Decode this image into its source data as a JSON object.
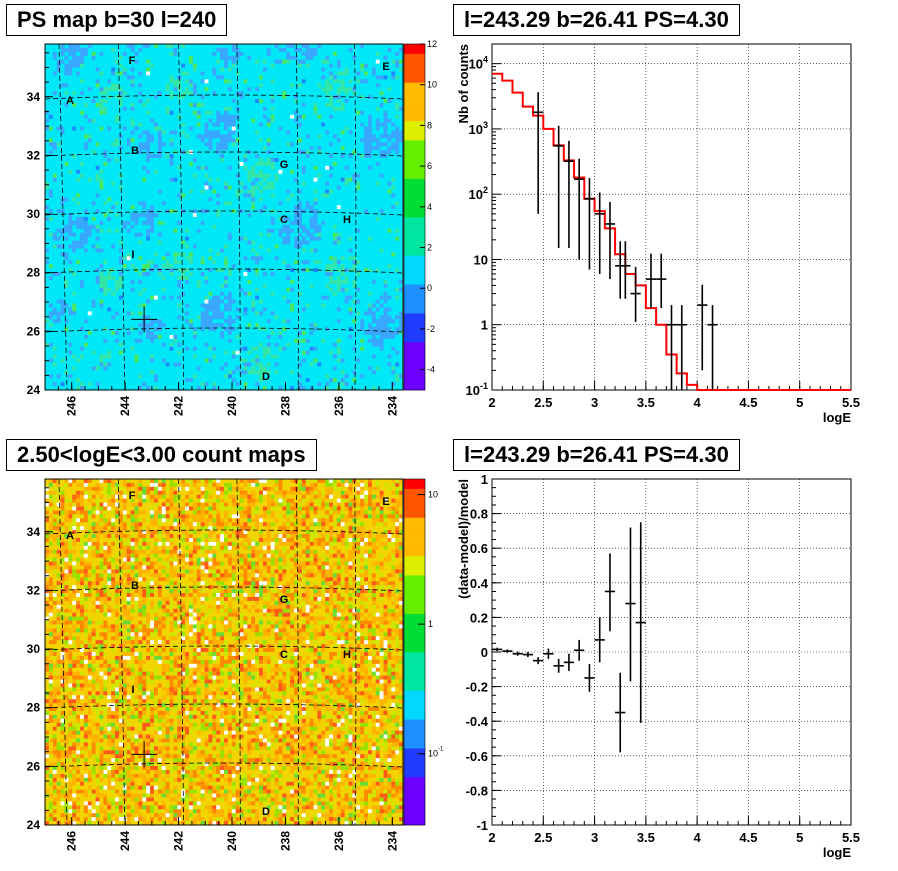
{
  "panels": {
    "ps_map": {
      "title": "PS map b=30 l=240"
    },
    "spectrum": {
      "title": "l=243.29 b=26.41 PS=4.30"
    },
    "count_map": {
      "title": "2.50<logE<3.00 count maps"
    },
    "residual": {
      "title": "l=243.29 b=26.41 PS=4.30"
    }
  },
  "colors": {
    "data": "#000000",
    "model": "#ff0000",
    "map_bg_top": "#00eaff",
    "map_bg_bottom": "#f5d000"
  },
  "chart_data": [
    {
      "type": "heatmap",
      "title": "PS map b=30 l=240",
      "x_tick_labels": [
        "246",
        "244",
        "242",
        "240",
        "238",
        "236",
        "234"
      ],
      "y_tick_labels": [
        "24",
        "26",
        "28",
        "30",
        "32",
        "34"
      ],
      "colorbar_labels": [
        "12",
        "10",
        "8",
        "6",
        "4",
        "2",
        "0",
        "-2",
        "-4"
      ],
      "zlim": [
        -5,
        12
      ],
      "source_labels": [
        "A",
        "B",
        "C",
        "D",
        "E",
        "F",
        "G",
        "H",
        "I"
      ],
      "marker": {
        "l": 243.29,
        "b": 26.41
      }
    },
    {
      "type": "line",
      "title": "l=243.29 b=26.41 PS=4.30",
      "xlabel": "logE",
      "ylabel": "Nb of counts",
      "xlim": [
        2,
        5.5
      ],
      "ylim": [
        0.1,
        20000
      ],
      "y_scale": "log",
      "x_tick_labels": [
        "2",
        "2.5",
        "3",
        "3.5",
        "4",
        "4.5",
        "5",
        "5.5"
      ],
      "y_tick_labels": [
        "10^{-1}",
        "1",
        "10",
        "10^{2}",
        "10^{3}",
        "10^{4}"
      ],
      "grid": true,
      "series": [
        {
          "kind": "step",
          "x_edges": [
            2.0,
            2.1,
            2.2,
            2.3,
            2.4,
            2.5,
            2.6,
            2.7,
            2.8,
            2.9,
            3.0,
            3.1,
            3.2,
            3.3,
            3.4,
            3.5,
            3.6,
            3.7,
            3.8,
            3.9,
            4.0,
            5.5
          ],
          "values": [
            7000,
            5500,
            3600,
            2200,
            1600,
            1000,
            560,
            330,
            180,
            85,
            55,
            30,
            12,
            6,
            4,
            1.8,
            1.0,
            0.35,
            0.18,
            0.12,
            0.1
          ]
        },
        {
          "kind": "errorbar",
          "x": [
            2.45,
            2.65,
            2.75,
            2.85,
            2.95,
            3.05,
            3.15,
            3.25,
            3.3,
            3.4,
            3.55,
            3.65,
            3.75,
            3.85,
            4.05,
            4.15
          ],
          "values": [
            1800,
            550,
            320,
            170,
            85,
            50,
            35,
            8,
            8,
            3,
            5,
            5,
            1,
            1,
            2,
            1
          ],
          "err_low": [
            1750,
            535,
            305,
            160,
            78,
            44,
            30,
            5.5,
            5.5,
            1.9,
            3.2,
            3.2,
            0.9,
            0.9,
            1.8,
            0.9
          ],
          "err_high": [
            1850,
            565,
            335,
            180,
            92,
            56,
            41,
            11,
            11,
            4.7,
            7.3,
            7.3,
            1.0,
            1.0,
            2.1,
            1.0
          ],
          "x_half_width": 0.05
        }
      ]
    },
    {
      "type": "heatmap",
      "title": "2.50<logE<3.00 count maps",
      "x_tick_labels": [
        "246",
        "244",
        "242",
        "240",
        "238",
        "236",
        "234"
      ],
      "y_tick_labels": [
        "24",
        "26",
        "28",
        "30",
        "32",
        "34"
      ],
      "colorbar_labels": [
        "10",
        "1",
        "10^{-1}"
      ],
      "z_scale": "log",
      "source_labels": [
        "A",
        "B",
        "C",
        "D",
        "E",
        "F",
        "G",
        "H",
        "I"
      ],
      "marker": {
        "l": 243.29,
        "b": 26.41
      }
    },
    {
      "type": "scatter",
      "title": "l=243.29 b=26.41 PS=4.30",
      "xlabel": "logE",
      "ylabel": "(data-model)/model",
      "xlim": [
        2,
        5.5
      ],
      "ylim": [
        -1,
        1
      ],
      "x_tick_labels": [
        "2",
        "2.5",
        "3",
        "3.5",
        "4",
        "4.5",
        "5",
        "5.5"
      ],
      "y_tick_labels": [
        "-1",
        "-0.8",
        "-0.6",
        "-0.4",
        "-0.2",
        "0",
        "0.2",
        "0.4",
        "0.6",
        "0.8",
        "1"
      ],
      "grid": true,
      "x": [
        2.05,
        2.15,
        2.25,
        2.35,
        2.45,
        2.55,
        2.65,
        2.75,
        2.85,
        2.95,
        3.05,
        3.15,
        3.25,
        3.35,
        3.45
      ],
      "values": [
        0.015,
        0.005,
        -0.01,
        -0.015,
        -0.05,
        -0.01,
        -0.08,
        -0.06,
        0.01,
        -0.15,
        0.07,
        0.35,
        -0.35,
        0.28,
        0.17
      ],
      "err_low": [
        0.01,
        0.01,
        0.012,
        0.015,
        0.02,
        0.03,
        0.04,
        0.05,
        0.06,
        0.08,
        0.13,
        0.23,
        0.23,
        0.45,
        0.58
      ],
      "err_high": [
        0.01,
        0.01,
        0.012,
        0.015,
        0.02,
        0.03,
        0.04,
        0.05,
        0.06,
        0.08,
        0.13,
        0.22,
        0.23,
        0.44,
        0.58
      ],
      "x_half_width": 0.05
    }
  ]
}
